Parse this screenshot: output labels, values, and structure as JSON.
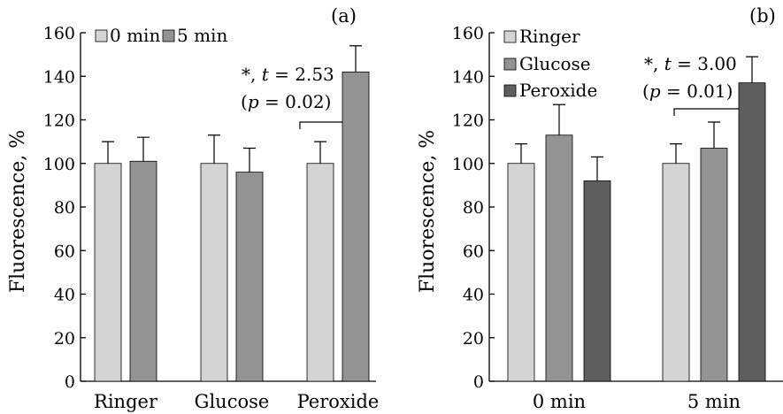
{
  "chart_data": [
    {
      "type": "bar",
      "panel_label": "(a)",
      "ylabel": "Fluorescence, %",
      "xlabel": "",
      "ylim": [
        0,
        160
      ],
      "yticks": [
        0,
        20,
        40,
        60,
        80,
        100,
        120,
        140,
        160
      ],
      "categories": [
        "Ringer",
        "Glucose",
        "Peroxide"
      ],
      "legend_position": "top-left",
      "series": [
        {
          "name": "0 min",
          "color": "#d4d4d4",
          "values": [
            100,
            100,
            100
          ],
          "errors": [
            10,
            13,
            10
          ]
        },
        {
          "name": "5 min",
          "color": "#939393",
          "values": [
            101,
            96,
            142
          ],
          "errors": [
            11,
            11,
            12
          ]
        }
      ],
      "annotation": {
        "line1_prefix": "*, ",
        "line1_var": "t",
        "line1_suffix": " = 2.53",
        "line2_open": "(",
        "line2_var": "p",
        "line2_suffix": " = 0.02)"
      }
    },
    {
      "type": "bar",
      "panel_label": "(b)",
      "ylabel": "Fluorescence, %",
      "xlabel": "",
      "ylim": [
        0,
        160
      ],
      "yticks": [
        0,
        20,
        40,
        60,
        80,
        100,
        120,
        140,
        160
      ],
      "categories": [
        "0 min",
        "5 min"
      ],
      "legend_position": "top-left",
      "series": [
        {
          "name": "Ringer",
          "color": "#d4d4d4",
          "values": [
            100,
            100
          ],
          "errors": [
            9,
            9
          ]
        },
        {
          "name": "Glucose",
          "color": "#939393",
          "values": [
            113,
            107
          ],
          "errors": [
            14,
            12
          ]
        },
        {
          "name": "Peroxide",
          "color": "#5e5e5e",
          "values": [
            92,
            137
          ],
          "errors": [
            11,
            12
          ]
        }
      ],
      "annotation": {
        "line1_prefix": "*, ",
        "line1_var": "t",
        "line1_suffix": " = 3.00",
        "line2_open": "(",
        "line2_var": "p",
        "line2_suffix": " = 0.01)"
      }
    }
  ]
}
